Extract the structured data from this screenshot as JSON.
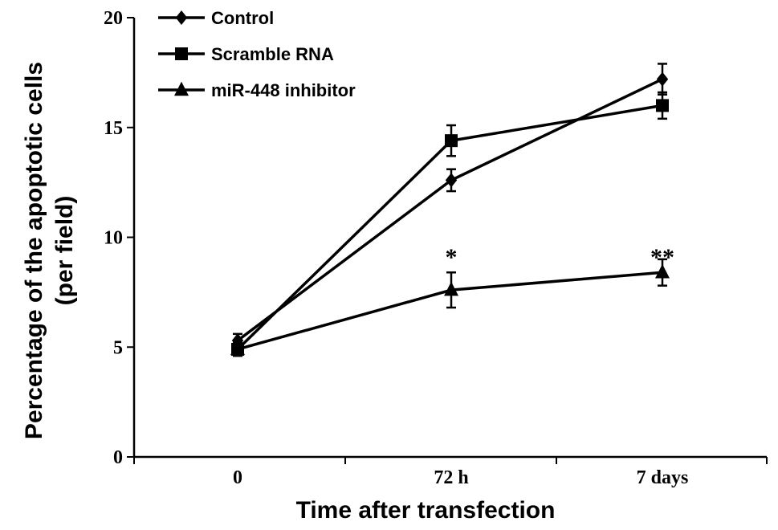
{
  "chart_data": {
    "type": "line",
    "title": "",
    "xlabel": "Time after transfection",
    "ylabel_line1": "Percentage of the apoptotic cells",
    "ylabel_line2": "(per field)",
    "categories": [
      "0",
      "72 h",
      "7 days"
    ],
    "ylim": [
      0,
      20
    ],
    "yticks": [
      "0",
      "5",
      "10",
      "15",
      "20"
    ],
    "legend_position": "top-left",
    "series": [
      {
        "name": "Control",
        "marker": "diamond",
        "values": [
          5.3,
          12.6,
          17.2
        ],
        "errors": [
          0.3,
          0.5,
          0.7
        ]
      },
      {
        "name": "Scramble RNA",
        "marker": "square",
        "values": [
          4.9,
          14.4,
          16.0
        ],
        "errors": [
          0.3,
          0.7,
          0.6
        ]
      },
      {
        "name": "miR-448 inhibitor",
        "marker": "triangle",
        "values": [
          4.9,
          7.6,
          8.4
        ],
        "errors": [
          0.2,
          0.8,
          0.6
        ]
      }
    ],
    "annotations": [
      {
        "category": "72 h",
        "text": "*"
      },
      {
        "category": "7 days",
        "text": "**"
      }
    ]
  }
}
